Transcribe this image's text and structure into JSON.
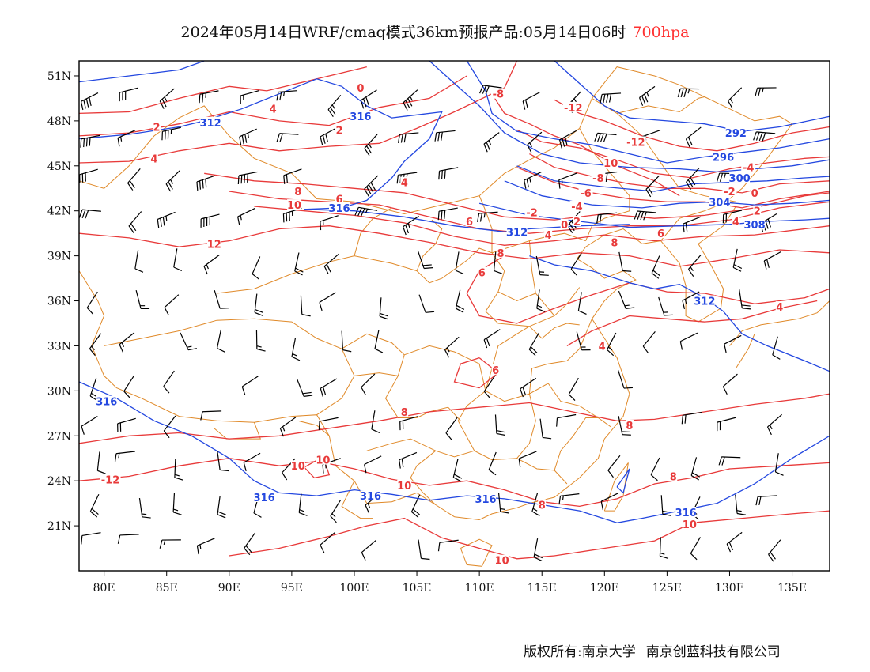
{
  "title": {
    "main": "2024年05月14日WRF/cmaq模式36km预报产品:05月14日06时",
    "level": "700hpa"
  },
  "colors": {
    "temperature": "#e83a3a",
    "height": "#2448e0",
    "border": "#e08a2a",
    "wind": "#000000"
  },
  "map": {
    "lon_range": [
      78,
      138
    ],
    "lat_range": [
      18,
      52
    ],
    "lon_ticks": [
      "80E",
      "85E",
      "90E",
      "95E",
      "100E",
      "105E",
      "110E",
      "115E",
      "120E",
      "125E",
      "130E",
      "135E"
    ],
    "lat_ticks": [
      "51N",
      "48N",
      "45N",
      "42N",
      "39N",
      "36N",
      "33N",
      "30N",
      "27N",
      "24N",
      "21N"
    ],
    "temperature_labels": [
      {
        "text": "0",
        "lon": 100.5,
        "lat": 50.2
      },
      {
        "text": "-8",
        "lon": 111.5,
        "lat": 49.8
      },
      {
        "text": "-12",
        "lon": 117.5,
        "lat": 48.9
      },
      {
        "text": "2",
        "lon": 84.2,
        "lat": 47.6
      },
      {
        "text": "4",
        "lon": 93.5,
        "lat": 48.8
      },
      {
        "text": "2",
        "lon": 98.8,
        "lat": 47.4
      },
      {
        "text": "4",
        "lon": 84.0,
        "lat": 45.5
      },
      {
        "text": "4",
        "lon": 104.0,
        "lat": 43.9
      },
      {
        "text": "8",
        "lon": 95.5,
        "lat": 43.3
      },
      {
        "text": "10",
        "lon": 95.2,
        "lat": 42.4
      },
      {
        "text": "6",
        "lon": 98.8,
        "lat": 42.8
      },
      {
        "text": "12",
        "lon": 88.8,
        "lat": 39.8
      },
      {
        "text": "-12",
        "lon": 122.5,
        "lat": 46.6
      },
      {
        "text": "10",
        "lon": 120.5,
        "lat": 45.2
      },
      {
        "text": "-8",
        "lon": 119.5,
        "lat": 44.2
      },
      {
        "text": "-6",
        "lon": 118.5,
        "lat": 43.2
      },
      {
        "text": "-4",
        "lon": 117.8,
        "lat": 42.3
      },
      {
        "text": "-2",
        "lon": 114.2,
        "lat": 41.9
      },
      {
        "text": "0",
        "lon": 116.8,
        "lat": 41.1
      },
      {
        "text": "2",
        "lon": 117.8,
        "lat": 41.3
      },
      {
        "text": "4",
        "lon": 115.5,
        "lat": 40.4
      },
      {
        "text": "6",
        "lon": 109.2,
        "lat": 41.3
      },
      {
        "text": "8",
        "lon": 120.8,
        "lat": 39.9
      },
      {
        "text": "6",
        "lon": 124.5,
        "lat": 40.5
      },
      {
        "text": "8",
        "lon": 111.7,
        "lat": 39.2
      },
      {
        "text": "6",
        "lon": 110.2,
        "lat": 37.9
      },
      {
        "text": "-4",
        "lon": 131.5,
        "lat": 44.9
      },
      {
        "text": "-2",
        "lon": 130.0,
        "lat": 43.3
      },
      {
        "text": "0",
        "lon": 132.0,
        "lat": 43.2
      },
      {
        "text": "2",
        "lon": 132.2,
        "lat": 42.0
      },
      {
        "text": "4",
        "lon": 130.5,
        "lat": 41.3
      },
      {
        "text": "4",
        "lon": 134.0,
        "lat": 35.6
      },
      {
        "text": "4",
        "lon": 119.8,
        "lat": 33.0
      },
      {
        "text": "6",
        "lon": 111.3,
        "lat": 31.4
      },
      {
        "text": "8",
        "lon": 104.0,
        "lat": 28.6
      },
      {
        "text": "8",
        "lon": 122.0,
        "lat": 27.7
      },
      {
        "text": "8",
        "lon": 125.5,
        "lat": 24.3
      },
      {
        "text": "8",
        "lon": 115.0,
        "lat": 22.4
      },
      {
        "text": "10",
        "lon": 95.5,
        "lat": 25.0
      },
      {
        "text": "10",
        "lon": 97.5,
        "lat": 25.4
      },
      {
        "text": "10",
        "lon": 104.0,
        "lat": 23.7
      },
      {
        "text": "10",
        "lon": 126.8,
        "lat": 21.1
      },
      {
        "text": "10",
        "lon": 111.8,
        "lat": 18.7
      },
      {
        "text": "-12",
        "lon": 80.5,
        "lat": 24.1
      }
    ],
    "height_labels": [
      {
        "text": "316",
        "lon": 100.5,
        "lat": 48.3
      },
      {
        "text": "312",
        "lon": 88.5,
        "lat": 47.9
      },
      {
        "text": "316",
        "lon": 98.8,
        "lat": 42.2
      },
      {
        "text": "312",
        "lon": 113.0,
        "lat": 40.6
      },
      {
        "text": "292",
        "lon": 130.5,
        "lat": 47.2
      },
      {
        "text": "296",
        "lon": 129.5,
        "lat": 45.6
      },
      {
        "text": "300",
        "lon": 130.8,
        "lat": 44.2
      },
      {
        "text": "304",
        "lon": 129.2,
        "lat": 42.6
      },
      {
        "text": "308",
        "lon": 132.0,
        "lat": 41.1
      },
      {
        "text": "312",
        "lon": 128.0,
        "lat": 36.0
      },
      {
        "text": "316",
        "lon": 80.2,
        "lat": 29.3
      },
      {
        "text": "316",
        "lon": 92.8,
        "lat": 22.9
      },
      {
        "text": "316",
        "lon": 101.3,
        "lat": 23.0
      },
      {
        "text": "316",
        "lon": 110.5,
        "lat": 22.8
      },
      {
        "text": "316",
        "lon": 126.5,
        "lat": 21.9
      }
    ]
  },
  "footer": {
    "copyright": "版权所有:南京大学",
    "company": "南京创蓝科技有限公司"
  }
}
